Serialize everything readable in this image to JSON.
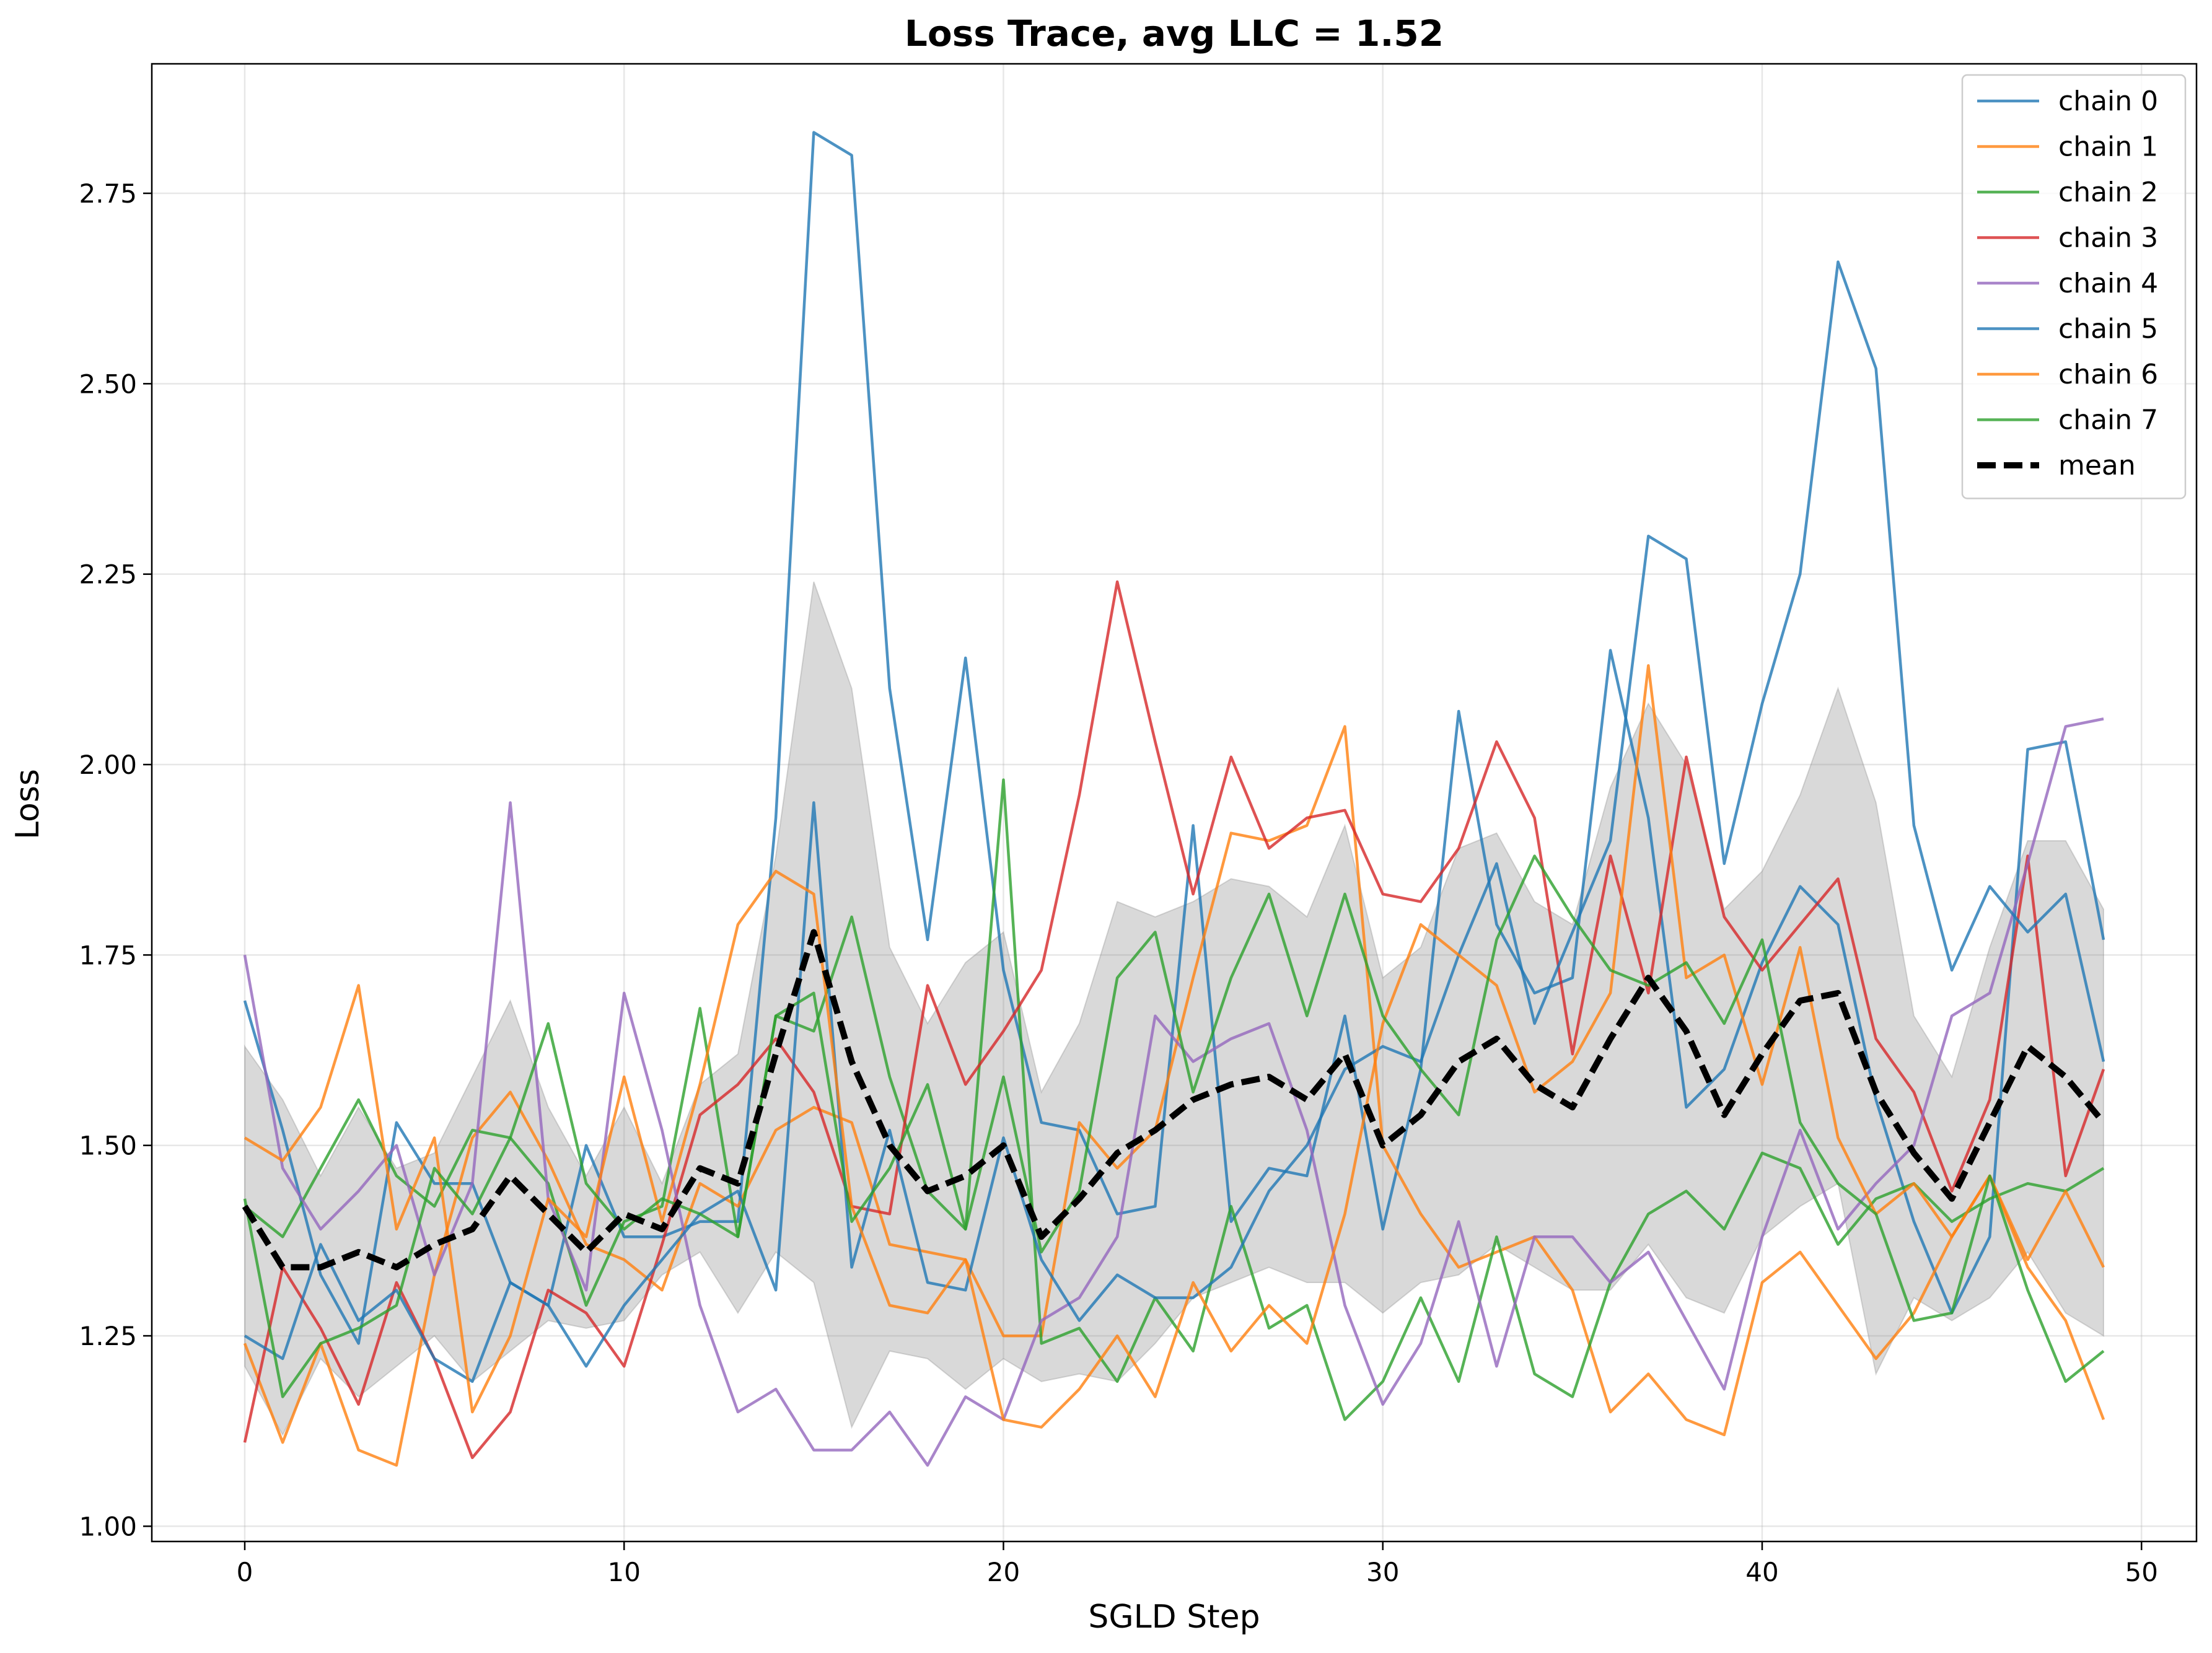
{
  "chart_data": {
    "type": "line",
    "title": "Loss Trace, avg LLC = 1.52",
    "xlabel": "SGLD Step",
    "ylabel": "Loss",
    "xlim": [
      -2.45,
      51.45
    ],
    "ylim": [
      0.98,
      2.92
    ],
    "xticks": [
      0,
      10,
      20,
      30,
      40,
      50
    ],
    "yticks": [
      1.0,
      1.25,
      1.5,
      1.75,
      2.0,
      2.25,
      2.5,
      2.75
    ],
    "xtick_labels": [
      "0",
      "10",
      "20",
      "30",
      "40",
      "50"
    ],
    "ytick_labels": [
      "1.00",
      "1.25",
      "1.50",
      "1.75",
      "2.00",
      "2.25",
      "2.50",
      "2.75"
    ],
    "grid": true,
    "legend_position": "top-right",
    "x": [
      0,
      1,
      2,
      3,
      4,
      5,
      6,
      7,
      8,
      9,
      10,
      11,
      12,
      13,
      14,
      15,
      16,
      17,
      18,
      19,
      20,
      21,
      22,
      23,
      24,
      25,
      26,
      27,
      28,
      29,
      30,
      31,
      32,
      33,
      34,
      35,
      36,
      37,
      38,
      39,
      40,
      41,
      42,
      43,
      44,
      45,
      46,
      47,
      48,
      49
    ],
    "series": [
      {
        "name": "chain 0",
        "color": "#1f77b4",
        "values": [
          1.69,
          1.52,
          1.33,
          1.24,
          1.53,
          1.45,
          1.45,
          1.32,
          1.29,
          1.5,
          1.38,
          1.38,
          1.4,
          1.4,
          1.93,
          2.83,
          2.8,
          2.1,
          1.77,
          2.14,
          1.73,
          1.53,
          1.52,
          1.41,
          1.42,
          1.92,
          1.4,
          1.47,
          1.46,
          1.67,
          1.39,
          1.6,
          2.07,
          1.79,
          1.7,
          1.72,
          2.15,
          1.93,
          1.55,
          1.6,
          1.74,
          1.84,
          1.79,
          1.56,
          1.4,
          1.28,
          1.38,
          2.02,
          2.03,
          1.77
        ]
      },
      {
        "name": "chain 1",
        "color": "#ff7f0e",
        "values": [
          1.24,
          1.11,
          1.24,
          1.1,
          1.08,
          1.33,
          1.51,
          1.57,
          1.48,
          1.37,
          1.35,
          1.31,
          1.45,
          1.42,
          1.52,
          1.55,
          1.53,
          1.37,
          1.36,
          1.35,
          1.25,
          1.25,
          1.53,
          1.47,
          1.52,
          1.72,
          1.91,
          1.9,
          1.92,
          2.05,
          1.5,
          1.41,
          1.34,
          1.36,
          1.38,
          1.31,
          1.15,
          1.2,
          1.14,
          1.12,
          1.32,
          1.36,
          1.29,
          1.22,
          1.28,
          1.38,
          1.46,
          1.34,
          1.27,
          1.14
        ]
      },
      {
        "name": "chain 2",
        "color": "#2ca02c",
        "values": [
          1.42,
          1.38,
          1.47,
          1.56,
          1.46,
          1.42,
          1.52,
          1.51,
          1.45,
          1.29,
          1.4,
          1.42,
          1.68,
          1.38,
          1.67,
          1.65,
          1.8,
          1.59,
          1.44,
          1.39,
          1.98,
          1.24,
          1.26,
          1.19,
          1.3,
          1.23,
          1.42,
          1.26,
          1.29,
          1.14,
          1.19,
          1.3,
          1.19,
          1.38,
          1.2,
          1.17,
          1.32,
          1.41,
          1.44,
          1.39,
          1.49,
          1.47,
          1.37,
          1.43,
          1.45,
          1.4,
          1.43,
          1.45,
          1.44,
          1.47
        ]
      },
      {
        "name": "chain 3",
        "color": "#d62728",
        "values": [
          1.11,
          1.34,
          1.26,
          1.16,
          1.32,
          1.22,
          1.09,
          1.15,
          1.31,
          1.28,
          1.21,
          1.37,
          1.54,
          1.58,
          1.64,
          1.57,
          1.42,
          1.41,
          1.71,
          1.58,
          1.65,
          1.73,
          1.96,
          2.24,
          2.03,
          1.83,
          2.01,
          1.89,
          1.93,
          1.94,
          1.83,
          1.82,
          1.89,
          2.03,
          1.93,
          1.62,
          1.88,
          1.7,
          2.01,
          1.8,
          1.73,
          1.79,
          1.85,
          1.64,
          1.57,
          1.44,
          1.56,
          1.88,
          1.46,
          1.6
        ]
      },
      {
        "name": "chain 4",
        "color": "#9467bd",
        "values": [
          1.75,
          1.47,
          1.39,
          1.44,
          1.5,
          1.33,
          1.45,
          1.95,
          1.43,
          1.31,
          1.7,
          1.52,
          1.29,
          1.15,
          1.18,
          1.1,
          1.1,
          1.15,
          1.08,
          1.17,
          1.14,
          1.27,
          1.3,
          1.38,
          1.67,
          1.61,
          1.64,
          1.66,
          1.52,
          1.29,
          1.16,
          1.24,
          1.4,
          1.21,
          1.38,
          1.38,
          1.32,
          1.36,
          1.27,
          1.18,
          1.38,
          1.52,
          1.39,
          1.45,
          1.5,
          1.67,
          1.7,
          1.87,
          2.05,
          2.06
        ]
      },
      {
        "name": "chain 5",
        "color": "#1f77b4",
        "values": [
          1.25,
          1.22,
          1.37,
          1.27,
          1.31,
          1.22,
          1.19,
          1.32,
          1.29,
          1.21,
          1.29,
          1.35,
          1.41,
          1.44,
          1.31,
          1.95,
          1.34,
          1.52,
          1.32,
          1.31,
          1.51,
          1.35,
          1.27,
          1.33,
          1.3,
          1.3,
          1.34,
          1.44,
          1.5,
          1.6,
          1.63,
          1.61,
          1.75,
          1.87,
          1.66,
          1.78,
          1.9,
          2.3,
          2.27,
          1.87,
          2.08,
          2.25,
          2.66,
          2.52,
          1.92,
          1.73,
          1.84,
          1.78,
          1.83,
          1.61
        ]
      },
      {
        "name": "chain 6",
        "color": "#ff7f0e",
        "values": [
          1.51,
          1.48,
          1.55,
          1.71,
          1.39,
          1.51,
          1.15,
          1.25,
          1.43,
          1.38,
          1.59,
          1.4,
          1.58,
          1.79,
          1.86,
          1.83,
          1.42,
          1.29,
          1.28,
          1.35,
          1.14,
          1.13,
          1.18,
          1.25,
          1.17,
          1.32,
          1.23,
          1.29,
          1.24,
          1.41,
          1.66,
          1.79,
          1.75,
          1.71,
          1.57,
          1.61,
          1.7,
          2.13,
          1.72,
          1.75,
          1.58,
          1.76,
          1.51,
          1.41,
          1.45,
          1.38,
          1.46,
          1.35,
          1.44,
          1.34
        ]
      },
      {
        "name": "chain 7",
        "color": "#2ca02c",
        "values": [
          1.43,
          1.17,
          1.24,
          1.26,
          1.29,
          1.47,
          1.41,
          1.51,
          1.66,
          1.45,
          1.39,
          1.43,
          1.41,
          1.38,
          1.67,
          1.7,
          1.4,
          1.47,
          1.58,
          1.39,
          1.59,
          1.36,
          1.44,
          1.72,
          1.78,
          1.57,
          1.72,
          1.83,
          1.67,
          1.83,
          1.67,
          1.6,
          1.54,
          1.77,
          1.88,
          1.8,
          1.73,
          1.71,
          1.74,
          1.66,
          1.77,
          1.53,
          1.45,
          1.41,
          1.27,
          1.28,
          1.46,
          1.31,
          1.19,
          1.23
        ]
      }
    ],
    "mean": {
      "name": "mean",
      "color": "#000000",
      "values": [
        1.42,
        1.34,
        1.34,
        1.36,
        1.34,
        1.37,
        1.39,
        1.46,
        1.41,
        1.36,
        1.41,
        1.39,
        1.47,
        1.45,
        1.62,
        1.78,
        1.61,
        1.5,
        1.44,
        1.46,
        1.5,
        1.38,
        1.43,
        1.49,
        1.52,
        1.56,
        1.58,
        1.59,
        1.56,
        1.62,
        1.5,
        1.54,
        1.61,
        1.64,
        1.58,
        1.55,
        1.64,
        1.72,
        1.65,
        1.54,
        1.62,
        1.69,
        1.7,
        1.57,
        1.49,
        1.43,
        1.53,
        1.63,
        1.59,
        1.53
      ]
    },
    "band": {
      "color": "#808080",
      "lower": [
        1.21,
        1.12,
        1.22,
        1.17,
        1.21,
        1.25,
        1.19,
        1.23,
        1.27,
        1.26,
        1.27,
        1.33,
        1.36,
        1.28,
        1.36,
        1.32,
        1.13,
        1.23,
        1.22,
        1.18,
        1.22,
        1.19,
        1.2,
        1.19,
        1.24,
        1.3,
        1.32,
        1.34,
        1.32,
        1.32,
        1.28,
        1.32,
        1.33,
        1.37,
        1.34,
        1.31,
        1.31,
        1.37,
        1.3,
        1.28,
        1.38,
        1.42,
        1.45,
        1.2,
        1.3,
        1.27,
        1.3,
        1.36,
        1.28,
        1.25
      ],
      "upper": [
        1.63,
        1.56,
        1.46,
        1.55,
        1.47,
        1.49,
        1.59,
        1.69,
        1.55,
        1.46,
        1.55,
        1.45,
        1.58,
        1.62,
        1.88,
        2.24,
        2.1,
        1.76,
        1.66,
        1.74,
        1.78,
        1.57,
        1.66,
        1.82,
        1.8,
        1.82,
        1.85,
        1.84,
        1.8,
        1.92,
        1.72,
        1.76,
        1.89,
        1.91,
        1.82,
        1.79,
        1.97,
        2.08,
        2.0,
        1.81,
        1.86,
        1.96,
        2.1,
        1.95,
        1.67,
        1.59,
        1.76,
        1.9,
        1.9,
        1.81
      ]
    }
  }
}
